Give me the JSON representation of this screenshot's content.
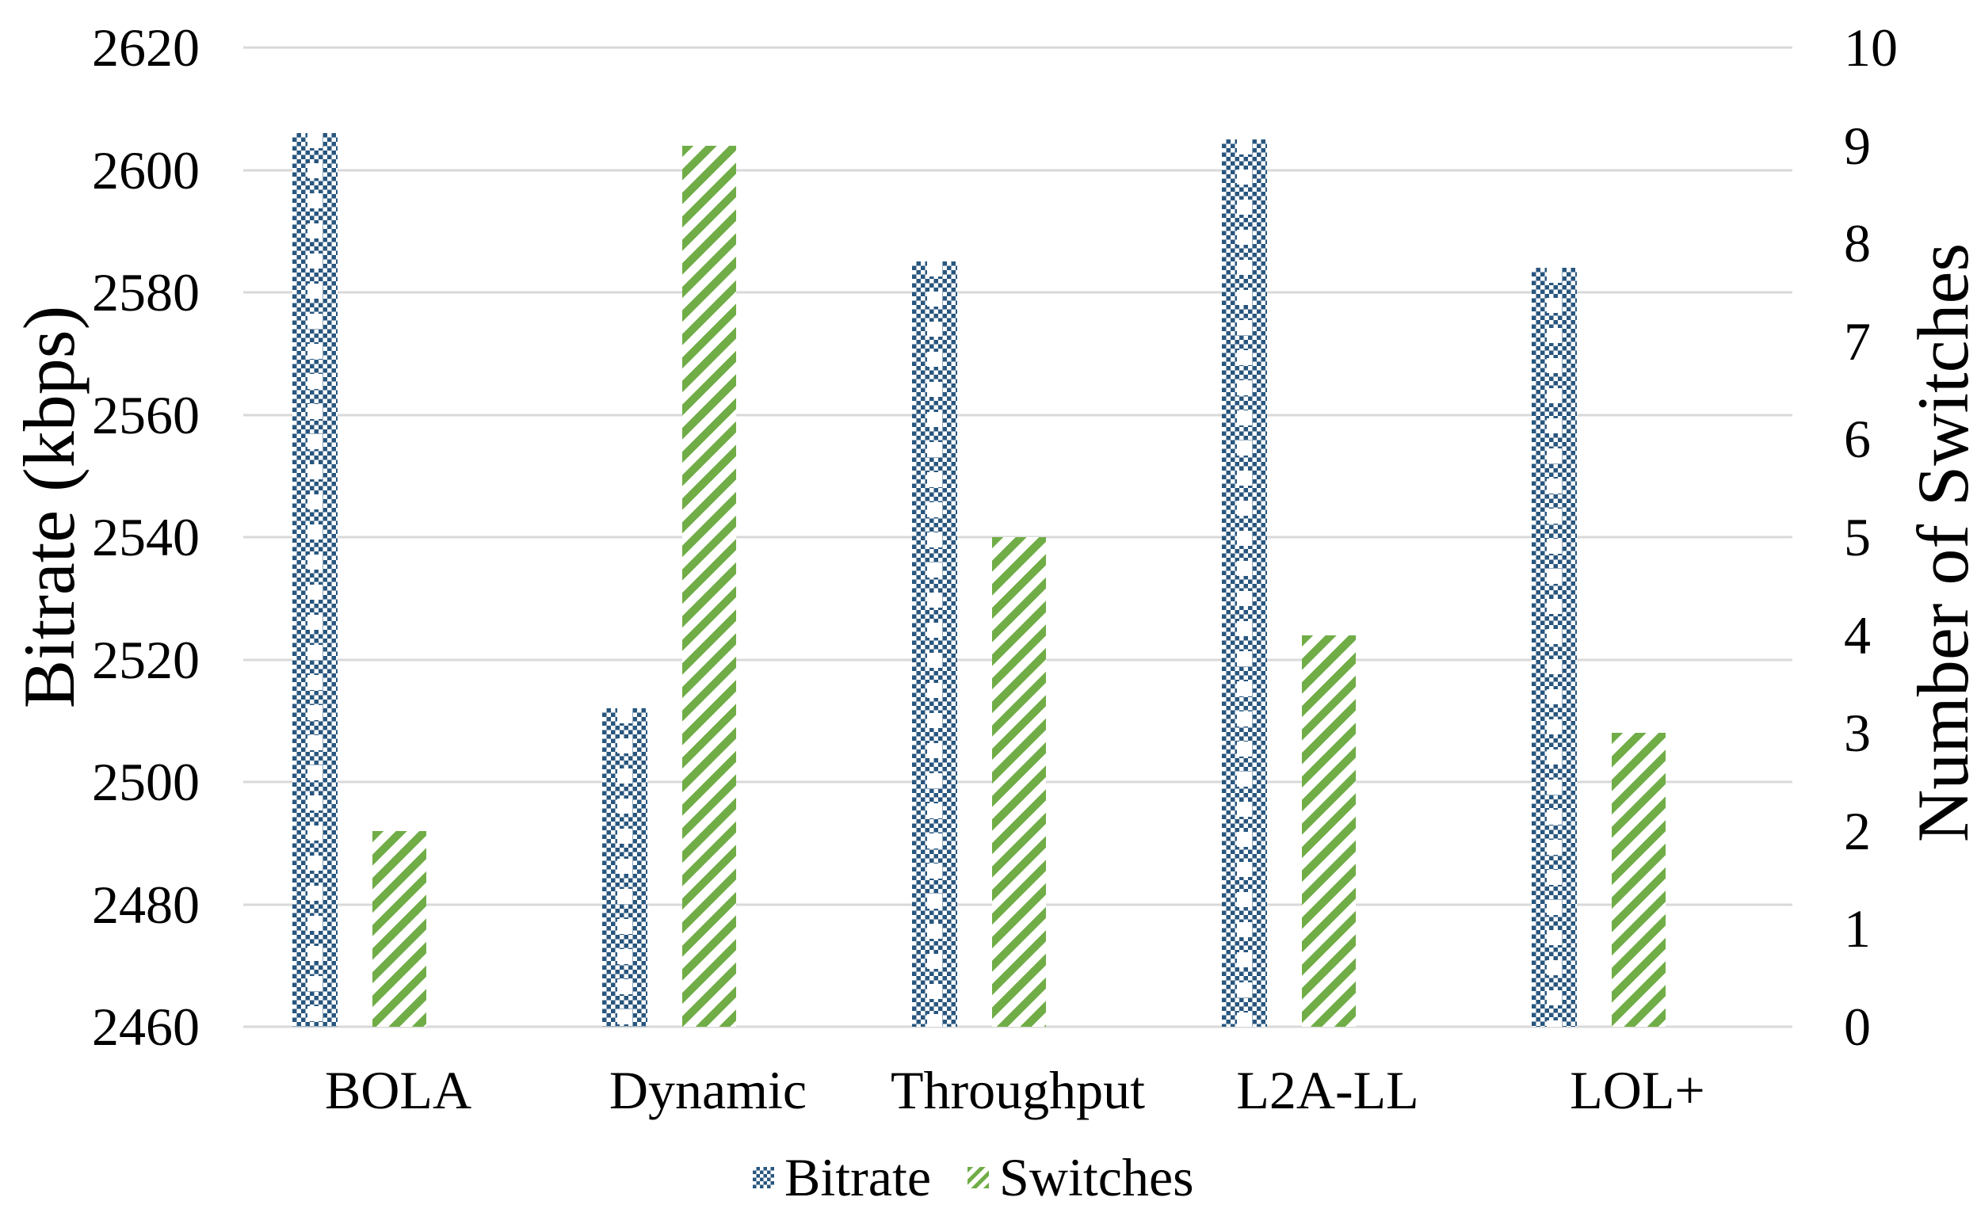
{
  "chart_data": {
    "type": "bar",
    "title": "",
    "categories": [
      "BOLA",
      "Dynamic",
      "Throughput",
      "L2A-LL",
      "LOL+"
    ],
    "series": [
      {
        "name": "Bitrate",
        "axis": "left",
        "pattern": "checkerboard",
        "color": "#28567e",
        "values": [
          2606,
          2512,
          2585,
          2605,
          2584
        ]
      },
      {
        "name": "Switches",
        "axis": "right",
        "pattern": "diagonal-stripes",
        "color": "#70ad47",
        "values": [
          2,
          9,
          5,
          4,
          3
        ]
      }
    ],
    "left_axis": {
      "label": "Bitrate (kbps)",
      "min": 2460,
      "max": 2620,
      "tick_step": 20,
      "ticks": [
        "2620",
        "2600",
        "2580",
        "2560",
        "2540",
        "2520",
        "2500",
        "2480",
        "2460"
      ]
    },
    "right_axis": {
      "label": "Number of Switches",
      "min": 0,
      "max": 10,
      "tick_step": 1,
      "ticks": [
        "10",
        "9",
        "8",
        "7",
        "6",
        "5",
        "4",
        "3",
        "2",
        "1",
        "0"
      ]
    },
    "legend": {
      "position": "bottom",
      "entries": [
        "Bitrate",
        "Switches"
      ]
    },
    "grid": true,
    "gridline_color": "#d9d9d9",
    "background_color": "#ffffff",
    "text_color": "#000000"
  }
}
